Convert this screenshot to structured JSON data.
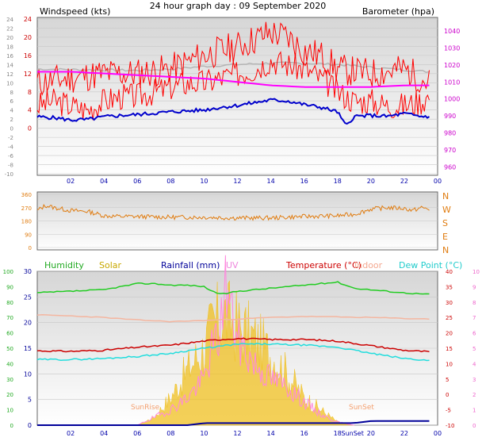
{
  "title": "24 hour graph day : 09 September 2020",
  "labels": {
    "windspeed": "Windspeed (kts)",
    "barometer": "Barometer (hpa)",
    "humidity": "Humidity",
    "solar": "Solar",
    "rainfall": "Rainfall (mm)",
    "uv": "UV",
    "temperature": "Temperature (°C)",
    "indoor": "Indoor",
    "dewpoint": "Dew Point (°C)",
    "sunrise": "SunRise",
    "sunset": "SunSet",
    "sunset_axis": "SunSet"
  },
  "colors": {
    "wind": "#ff0000",
    "gust": "#ff0000",
    "windavg": "#0000cc",
    "barometer": "#ff00ff",
    "barometer_grey": "#b4b4b4",
    "winddir": "#e07c10",
    "humidity": "#22cc22",
    "solar": "#f0c020",
    "rain": "#000099",
    "uv": "#ff88dd",
    "temperature": "#cc0000",
    "indoor": "#f4b6a0",
    "dewpoint": "#22dddd"
  },
  "chart_data": [
    {
      "type": "line",
      "name": "wind",
      "x_ticks": [
        "02",
        "04",
        "06",
        "08",
        "10",
        "12",
        "14",
        "16",
        "18",
        "20",
        "22",
        "00"
      ],
      "ylim_left": [
        -10,
        24
      ],
      "yticks_left": [
        "24",
        "22",
        "20",
        "18",
        "16",
        "14",
        "12",
        "10",
        "8",
        "6",
        "4",
        "2",
        "0",
        "-2",
        "-4",
        "-6",
        "-8",
        "-10"
      ],
      "yticks_left_inner": [
        "24",
        "20",
        "16",
        "12",
        "8",
        "4",
        "0"
      ],
      "ylim_inner": [
        0,
        24
      ],
      "yticks_right": [
        "1040",
        "1030",
        "1020",
        "1010",
        "1000",
        "990",
        "980",
        "970",
        "960"
      ],
      "ylim_right": [
        955,
        1048
      ],
      "yticks_right_outer": [
        "40",
        "35",
        "30",
        "25",
        "20",
        "15",
        "10",
        "5",
        "0",
        "-5",
        "-10"
      ],
      "series": [
        {
          "name": "Windspeed (kts)",
          "x": [
            0,
            1,
            2,
            3,
            4,
            5,
            6,
            7,
            8,
            9,
            10,
            11,
            12,
            13,
            14,
            15,
            16,
            17,
            18,
            18.5,
            19,
            20,
            21,
            22,
            23,
            23.5
          ],
          "values": [
            5,
            6,
            5,
            4,
            6,
            7,
            7,
            8,
            9,
            10,
            10,
            11,
            12,
            13,
            15,
            14,
            13,
            11,
            8,
            7,
            6,
            6,
            5,
            5,
            6,
            7
          ]
        },
        {
          "name": "Gust",
          "x": [
            0,
            2,
            4,
            6,
            8,
            10,
            12,
            14,
            15,
            16,
            17,
            18,
            20,
            22,
            23.5
          ],
          "values": [
            10,
            11,
            12,
            12,
            13,
            16,
            18,
            21,
            20,
            17,
            16,
            13,
            12,
            13,
            10
          ]
        },
        {
          "name": "Average",
          "x": [
            0,
            1,
            2,
            3,
            4,
            5,
            6,
            7,
            8,
            9,
            10,
            11,
            12,
            13,
            14,
            15,
            16,
            17,
            18,
            18.5,
            19,
            20,
            21,
            22,
            23,
            23.5
          ],
          "values": [
            2.5,
            2.3,
            1.8,
            1.9,
            2.5,
            2.8,
            3.0,
            3.3,
            3.6,
            3.8,
            4.0,
            4.6,
            5.0,
            5.6,
            6.2,
            6.0,
            5.2,
            4.6,
            3.6,
            0.5,
            2.6,
            2.8,
            2.6,
            3.2,
            2.6,
            2.6
          ]
        },
        {
          "name": "Barometer (hpa)",
          "x": [
            0,
            2,
            4,
            6,
            8,
            10,
            12,
            14,
            16,
            18,
            20,
            22,
            23.5
          ],
          "values": [
            1016,
            1016,
            1015,
            1014,
            1013,
            1012,
            1010,
            1008,
            1007,
            1007,
            1007,
            1008,
            1008
          ]
        },
        {
          "name": "Barometer grey",
          "x": [
            0,
            2,
            4,
            6,
            8,
            10,
            12,
            14,
            16,
            18,
            20,
            22,
            23.5
          ],
          "values": [
            13.0,
            12.9,
            12.8,
            12.7,
            13.0,
            13.6,
            14.0,
            14.3,
            14.3,
            14.0,
            13.4,
            12.8,
            12.4
          ]
        }
      ]
    },
    {
      "type": "line",
      "name": "wind direction",
      "x_ticks": [],
      "ylim": [
        0,
        360
      ],
      "yticks_left": [
        "360",
        "270",
        "180",
        "90",
        "0"
      ],
      "yticks_right": [
        "N",
        "W",
        "S",
        "E",
        "N"
      ],
      "series": [
        {
          "name": "Direction",
          "x": [
            0,
            0.5,
            1,
            2,
            3,
            4,
            5,
            6,
            8,
            10,
            12,
            14,
            16,
            18,
            19,
            20,
            21,
            22,
            22.5,
            23,
            23.5
          ],
          "values": [
            250,
            285,
            270,
            250,
            245,
            215,
            210,
            210,
            205,
            205,
            200,
            200,
            210,
            215,
            225,
            260,
            270,
            265,
            250,
            270,
            260
          ]
        }
      ]
    },
    {
      "type": "line",
      "name": "temperature",
      "x_ticks": [
        "02",
        "04",
        "06",
        "08",
        "10",
        "12",
        "14",
        "16",
        "18",
        "20",
        "22",
        "00"
      ],
      "SunSet_x": 18.9,
      "ylim_left": [
        0,
        100
      ],
      "yticks_left_outer": [
        "100",
        "90",
        "80",
        "70",
        "60",
        "50",
        "40",
        "30",
        "20",
        "10",
        "0"
      ],
      "ylim_inner": [
        0,
        30
      ],
      "yticks_inner": [
        "30",
        "25",
        "20",
        "15",
        "10",
        "5",
        "0"
      ],
      "ylim_right_temp": [
        -10,
        40
      ],
      "yticks_right_temp": [
        "40",
        "35",
        "30",
        "25",
        "20",
        "15",
        "10",
        "5",
        "0",
        "-5",
        "-10"
      ],
      "ylim_right_uv": [
        0,
        10
      ],
      "yticks_right_uv": [
        "10",
        "9",
        "8",
        "7",
        "6",
        "5",
        "4",
        "3",
        "2",
        "1",
        "0"
      ],
      "series": [
        {
          "name": "Humidity",
          "x": [
            0,
            2,
            4,
            5,
            6,
            7,
            8,
            9,
            10,
            10.5,
            11,
            12,
            14,
            16,
            18,
            19,
            20,
            22,
            23.5
          ],
          "values": [
            86,
            87,
            88,
            90,
            92,
            92,
            91,
            91,
            90,
            87,
            85,
            87,
            89,
            91,
            93,
            89,
            88,
            86,
            85
          ]
        },
        {
          "name": "Temperature (°C)",
          "x": [
            0,
            2,
            4,
            6,
            8,
            10,
            11,
            12,
            14,
            16,
            18,
            20,
            22,
            23.5
          ],
          "values": [
            14.5,
            14.4,
            14.6,
            15.2,
            15.6,
            16.4,
            16.7,
            16.9,
            16.7,
            16.7,
            16.4,
            15.5,
            14.6,
            14.3
          ]
        },
        {
          "name": "Dew Point (°C)",
          "x": [
            0,
            2,
            4,
            6,
            8,
            10,
            11,
            12,
            14,
            16,
            18,
            20,
            22,
            23.5
          ],
          "values": [
            12.8,
            12.8,
            13.0,
            13.4,
            14.0,
            15.0,
            15.4,
            15.8,
            15.8,
            15.6,
            15.2,
            14.0,
            13.0,
            12.6
          ]
        },
        {
          "name": "Indoor",
          "x": [
            0,
            2,
            4,
            6,
            8,
            10,
            12,
            14,
            16,
            18,
            20,
            22,
            23.5
          ],
          "values": [
            21.5,
            21.3,
            21.0,
            20.5,
            20.2,
            20.4,
            20.7,
            21.0,
            21.2,
            21.1,
            21.0,
            20.8,
            20.7
          ]
        },
        {
          "name": "Solar",
          "x": [
            6,
            7,
            8,
            9,
            10,
            10.5,
            11,
            11.2,
            12,
            13,
            14,
            15,
            16,
            17,
            18,
            19,
            20,
            21,
            22,
            23.5
          ],
          "values": [
            0,
            0.5,
            1.8,
            3.6,
            5.0,
            6.4,
            7.0,
            7.2,
            6.4,
            5.6,
            4.6,
            3.3,
            1.8,
            1.0,
            0.2,
            0,
            0,
            0,
            0,
            0
          ]
        },
        {
          "name": "UV",
          "x": [
            6,
            7,
            8,
            9,
            10,
            10.5,
            11,
            11.2,
            12,
            13,
            14,
            15,
            16,
            17,
            18,
            19,
            20,
            21,
            22,
            23.5
          ],
          "values": [
            0,
            0.5,
            1.0,
            1.8,
            3.0,
            5.0,
            6.0,
            9.5,
            5.5,
            4.0,
            3.0,
            2.5,
            1.5,
            0.7,
            0.2,
            0,
            0,
            0,
            0,
            0
          ]
        },
        {
          "name": "Rainfall (mm)",
          "x": [
            0,
            9,
            10,
            19,
            20,
            23.5
          ],
          "values": [
            0,
            0,
            0.4,
            0.4,
            0.8,
            0.8
          ]
        }
      ]
    }
  ]
}
